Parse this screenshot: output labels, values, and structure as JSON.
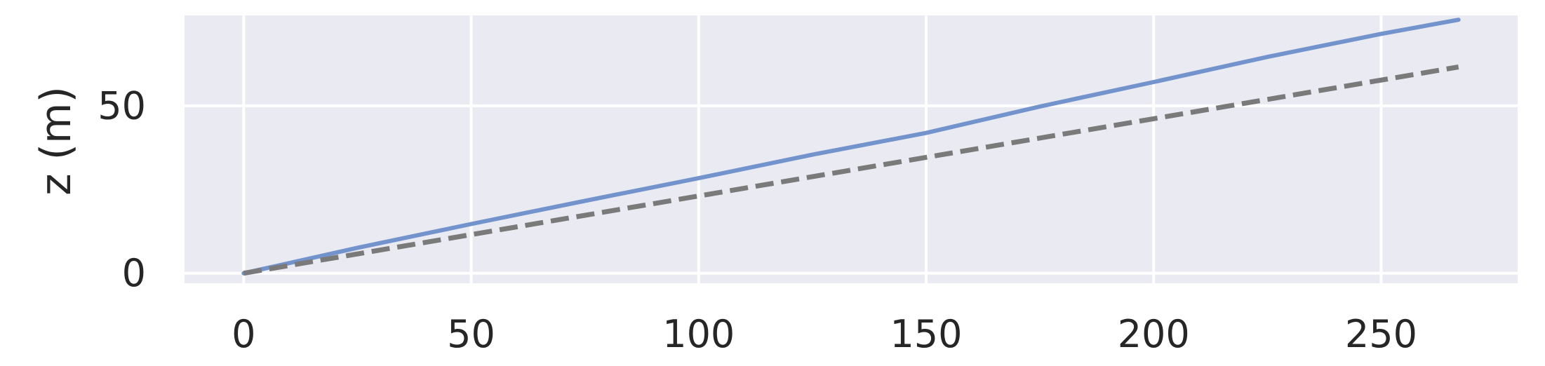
{
  "chart_data": {
    "type": "line",
    "title": "",
    "xlabel": "",
    "ylabel": "z (m)",
    "xlim": [
      -13,
      280
    ],
    "ylim": [
      -3,
      77
    ],
    "x_ticks": [
      0,
      50,
      100,
      150,
      200,
      250
    ],
    "y_ticks": [
      0,
      50
    ],
    "grid": true,
    "legend": "none",
    "series": [
      {
        "style": "solid",
        "color": "#7293cb",
        "x": [
          0,
          25,
          50,
          75,
          100,
          125,
          150,
          175,
          200,
          225,
          250,
          267
        ],
        "y": [
          0,
          7.6,
          14.7,
          21.6,
          28.4,
          35.4,
          41.9,
          49.8,
          57.1,
          64.6,
          71.5,
          75.7
        ]
      },
      {
        "style": "dashed",
        "color": "#7a7a7a",
        "x": [
          0,
          267
        ],
        "y": [
          0,
          61.6
        ]
      }
    ]
  }
}
